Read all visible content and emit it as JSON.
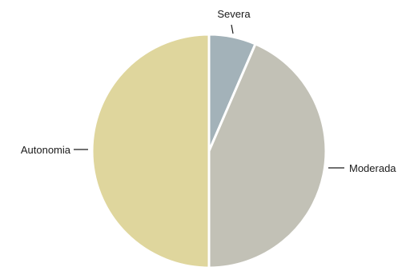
{
  "chart_data": {
    "type": "pie",
    "title": "",
    "start": "top",
    "direction": "clockwise",
    "slices": [
      {
        "label": "Severa",
        "value": 6.5,
        "color": "#a3b2b9"
      },
      {
        "label": "Moderada",
        "value": 43.5,
        "color": "#c2c1b6"
      },
      {
        "label": "Autonomia",
        "value": 50.0,
        "color": "#dfd69d"
      }
    ],
    "separator_color": "#ffffff"
  }
}
